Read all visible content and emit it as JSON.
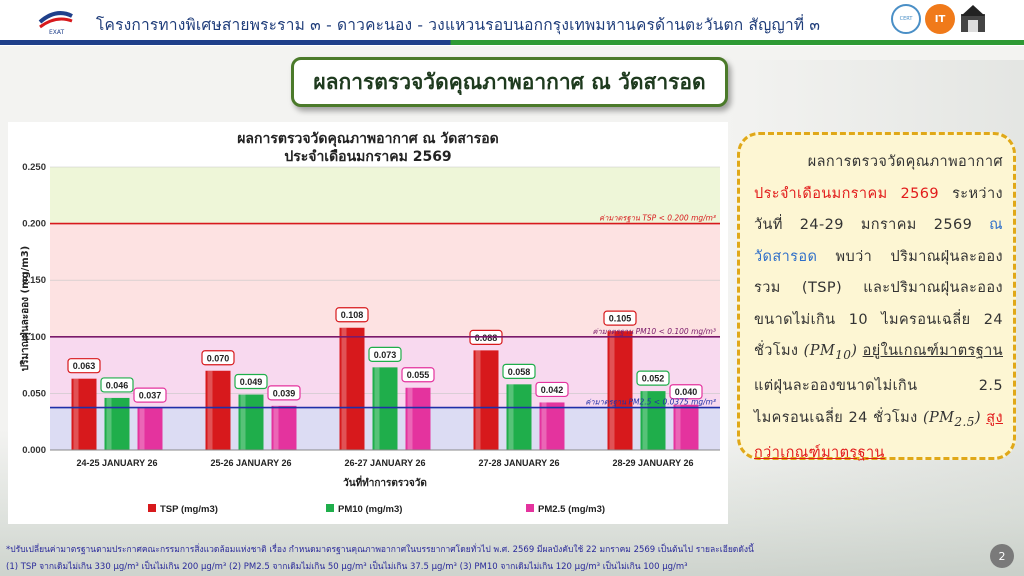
{
  "header": {
    "title": "โครงการทางพิเศษสายพระราม ๓ - ดาวคะนอง - วงแหวนรอบนอกกรุงเทพมหานครด้านตะวันตก สัญญาที่ ๓",
    "logo_left": "EXAT",
    "logo_right_1": "CERT",
    "logo_right_2": "IT"
  },
  "page_title": "ผลการตรวจวัดคุณภาพอากาศ ณ วัดสารอด",
  "chart_titles": {
    "line1": "ผลการตรวจวัดคุณภาพอากาศ ณ วัดสารอด",
    "line2": "ประจำเดือนมกราคม 2569"
  },
  "chart_data": {
    "type": "bar",
    "title": "ผลการตรวจวัดคุณภาพอากาศ ณ วัดสารอด ประจำเดือนมกราคม 2569",
    "xlabel": "วันที่ทำการตรวจวัด",
    "ylabel": "ปริมาณฝุ่นละออง (mg/m3)",
    "ylim": [
      0,
      0.25
    ],
    "yticks": [
      "0.000",
      "0.050",
      "0.100",
      "0.150",
      "0.200",
      "0.250"
    ],
    "categories": [
      "24-25 JANUARY  26",
      "25-26 JANUARY  26",
      "26-27 JANUARY  26",
      "27-28 JANUARY  26",
      "28-29 JANUARY  26"
    ],
    "series": [
      {
        "name": "TSP (mg/m3)",
        "color": "#d7191c",
        "values": [
          0.063,
          0.07,
          0.108,
          0.088,
          0.105
        ],
        "labels": [
          "0.063",
          "0.070",
          "0.108",
          "0.088",
          "0.105"
        ]
      },
      {
        "name": "PM10  (mg/m3)",
        "color": "#1fae4b",
        "values": [
          0.046,
          0.049,
          0.073,
          0.058,
          0.052
        ],
        "labels": [
          "0.046",
          "0.049",
          "0.073",
          "0.058",
          "0.052"
        ]
      },
      {
        "name": "PM2.5  (mg/m3)",
        "color": "#e4339e",
        "values": [
          0.037,
          0.039,
          0.055,
          0.042,
          0.04
        ],
        "labels": [
          "0.037",
          "0.039",
          "0.055",
          "0.042",
          "0.040"
        ]
      }
    ],
    "standards": [
      {
        "label": "ค่ามาตรฐาน TSP < 0.200 mg/m³",
        "value": 0.2,
        "color": "#d7191c"
      },
      {
        "label": "ค่ามาตรฐาน PM10 < 0.100 mg/m³",
        "value": 0.1,
        "color": "#7a1a6a"
      },
      {
        "label": "ค่ามาตรฐาน PM2.5 < 0.0375 mg/m³",
        "value": 0.0375,
        "color": "#1f2fa8"
      }
    ],
    "bands": [
      {
        "from": 0.2,
        "to": 0.25,
        "color": "#eef6d8"
      },
      {
        "from": 0.1,
        "to": 0.2,
        "color": "#fde2e2"
      },
      {
        "from": 0.0375,
        "to": 0.1,
        "color": "#f8d9ef"
      },
      {
        "from": 0,
        "to": 0.0375,
        "color": "#dcdcf3"
      }
    ],
    "legend_position": "bottom"
  },
  "summary": {
    "p1": "ผลการตรวจวัดคุณภาพอากาศ",
    "p2": "ประจำเดือนมกราคม  2569",
    "p3": " ระหว่างวันที่ 24-29 มกราคม 2569 ",
    "p4": "ณ วัดสารอด",
    "p5": " พบว่า ปริมาณฝุ่นละอองรวม (TSP) และปริมาณฝุ่นละอองขนาดไม่เกิน 10 ไมครอนเฉลี่ย 24 ชั่วโมง ",
    "pm10": "(PM",
    "pm10_sub": "10",
    "pm10_close": ")",
    "p6": "อยู่ในเกณฑ์มาตรฐาน",
    "p7": " แต่ฝุ่นละอองขนาดไม่เกิน 2.5 ไมครอนเฉลี่ย 24 ชั่วโมง ",
    "pm25": "(PM",
    "pm25_sub": "2.5",
    "pm25_close": ")",
    "p8": "สูงกว่าเกณฑ์มาตรฐาน"
  },
  "footnotes": {
    "line1": "*ปรับเปลี่ยนค่ามาตรฐานตามประกาศคณะกรรมการสิ่งแวดล้อมแห่งชาติ เรื่อง กำหนดมาตรฐานคุณภาพอากาศในบรรยากาศโดยทั่วไป พ.ศ. 2569 มีผลบังคับใช้ 22 มกราคม 2569 เป็นต้นไป รายละเอียดดังนี้",
    "line2": "(1) TSP จากเดิมไม่เกิน 330 μg/m³ เป็นไม่เกิน 200 μg/m³   (2) PM2.5 จากเดิมไม่เกิน 50 μg/m³ เป็นไม่เกิน 37.5 μg/m³   (3) PM10 จากเดิมไม่เกิน 120 μg/m³ เป็นไม่เกิน 100 μg/m³"
  },
  "page_number": "2"
}
